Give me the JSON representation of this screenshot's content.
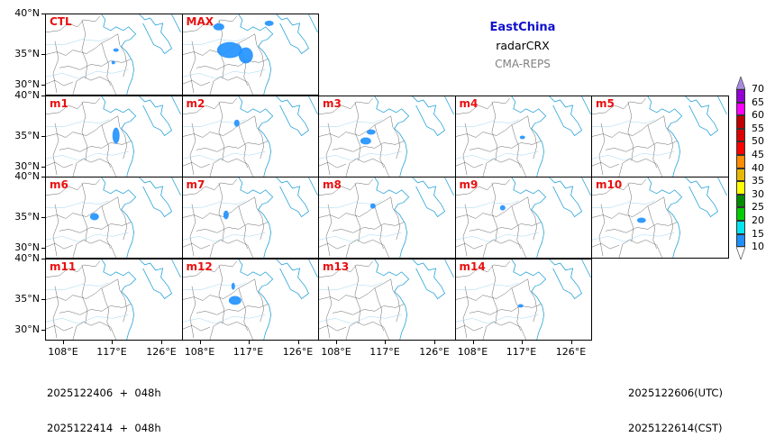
{
  "titles": {
    "region": "EastChina",
    "variable": "radarCRX",
    "source": "CMA-REPS",
    "region_color": "#1010cc",
    "source_color": "#808080"
  },
  "panels": [
    {
      "label": "CTL",
      "row": 0,
      "col": 0
    },
    {
      "label": "MAX",
      "row": 0,
      "col": 1
    },
    {
      "label": "m1",
      "row": 1,
      "col": 0
    },
    {
      "label": "m2",
      "row": 1,
      "col": 1
    },
    {
      "label": "m3",
      "row": 1,
      "col": 2
    },
    {
      "label": "m4",
      "row": 1,
      "col": 3
    },
    {
      "label": "m5",
      "row": 1,
      "col": 4
    },
    {
      "label": "m6",
      "row": 2,
      "col": 0
    },
    {
      "label": "m7",
      "row": 2,
      "col": 1
    },
    {
      "label": "m8",
      "row": 2,
      "col": 2
    },
    {
      "label": "m9",
      "row": 2,
      "col": 3
    },
    {
      "label": "m10",
      "row": 2,
      "col": 4
    },
    {
      "label": "m11",
      "row": 3,
      "col": 0
    },
    {
      "label": "m12",
      "row": 3,
      "col": 1
    },
    {
      "label": "m13",
      "row": 3,
      "col": 2
    },
    {
      "label": "m14",
      "row": 3,
      "col": 3
    }
  ],
  "axes": {
    "y_ticks": [
      "40°N",
      "35°N",
      "30°N"
    ],
    "x_ticks": [
      "108°E",
      "117°E",
      "126°E"
    ],
    "lat_range": [
      28,
      40
    ],
    "lon_range": [
      103,
      131
    ]
  },
  "colorbar": {
    "levels": [
      "10",
      "15",
      "20",
      "25",
      "30",
      "35",
      "40",
      "45",
      "50",
      "55",
      "60",
      "65",
      "70"
    ],
    "colors": [
      "#1e90ff",
      "#00e5ee",
      "#00cd00",
      "#008b00",
      "#ffff00",
      "#e6b800",
      "#ff8c00",
      "#ff0000",
      "#dd0000",
      "#c00000",
      "#ff00ff",
      "#9400d3"
    ],
    "under_color": "#ffffff",
    "over_color": "#a78be0",
    "units_hint": "dBZ"
  },
  "footer": {
    "init_line1": "2025122406  +  048h",
    "init_line2": "2025122414  +  048h",
    "valid_utc": "2025122606(UTC)",
    "valid_cst": "2025122614(CST)"
  }
}
